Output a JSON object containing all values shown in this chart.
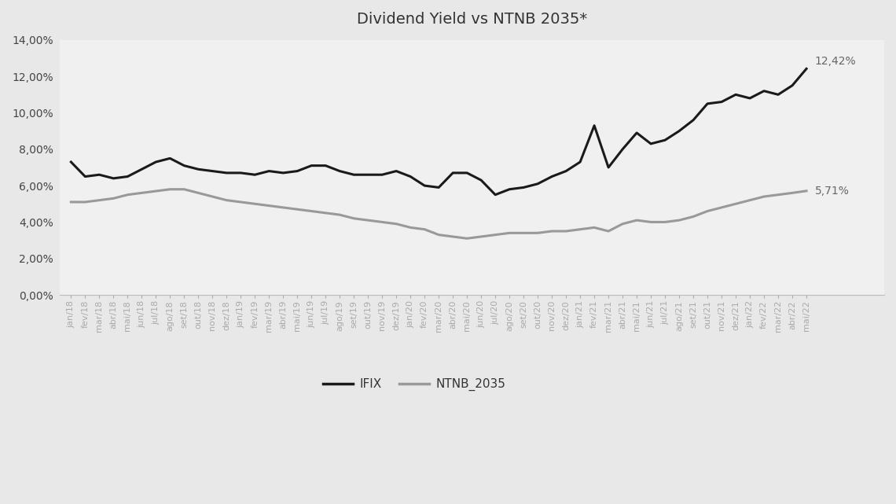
{
  "title": "Dividend Yield vs NTNB 2035*",
  "fig_background_color": "#e8e8e8",
  "plot_background_color": "#f0f0f0",
  "ifix_color": "#1a1a1a",
  "ntnb_color": "#999999",
  "line_width": 2.2,
  "labels": [
    "jan/18",
    "fev/18",
    "mar/18",
    "abr/18",
    "mai/18",
    "jun/18",
    "jul/18",
    "ago/18",
    "set/18",
    "out/18",
    "nov/18",
    "dez/18",
    "jan/19",
    "fev/19",
    "mar/19",
    "abr/19",
    "mai/19",
    "jun/19",
    "jul/19",
    "ago/19",
    "set/19",
    "out/19",
    "nov/19",
    "dez/19",
    "jan/20",
    "fev/20",
    "mar/20",
    "abr/20",
    "mai/20",
    "jun/20",
    "jul/20",
    "ago/20",
    "set/20",
    "out/20",
    "nov/20",
    "dez/20",
    "jan/21",
    "fev/21",
    "mar/21",
    "abr/21",
    "mai/21",
    "jun/21",
    "jul/21",
    "ago/21",
    "set/21",
    "out/21",
    "nov/21",
    "dez/21",
    "jan/22",
    "fev/22",
    "mar/22",
    "abr/22",
    "mai/22"
  ],
  "ifix": [
    7.3,
    6.5,
    6.6,
    6.4,
    6.5,
    6.9,
    7.3,
    7.5,
    7.1,
    6.9,
    6.8,
    6.7,
    6.7,
    6.6,
    6.8,
    6.7,
    6.8,
    7.1,
    7.1,
    6.8,
    6.6,
    6.6,
    6.6,
    6.8,
    6.5,
    6.0,
    5.9,
    6.7,
    6.7,
    6.3,
    5.5,
    5.8,
    5.9,
    6.1,
    6.5,
    6.8,
    7.3,
    9.3,
    7.0,
    8.0,
    8.9,
    8.3,
    8.5,
    9.0,
    9.6,
    10.5,
    10.6,
    11.0,
    10.8,
    11.2,
    11.0,
    11.5,
    12.42
  ],
  "ntnb": [
    5.1,
    5.1,
    5.2,
    5.3,
    5.5,
    5.6,
    5.7,
    5.8,
    5.8,
    5.6,
    5.4,
    5.2,
    5.1,
    5.0,
    4.9,
    4.8,
    4.7,
    4.6,
    4.5,
    4.4,
    4.2,
    4.1,
    4.0,
    3.9,
    3.7,
    3.6,
    3.3,
    3.2,
    3.1,
    3.2,
    3.3,
    3.4,
    3.4,
    3.4,
    3.5,
    3.5,
    3.6,
    3.7,
    3.5,
    3.9,
    4.1,
    4.0,
    4.0,
    4.1,
    4.3,
    4.6,
    4.8,
    5.0,
    5.2,
    5.4,
    5.5,
    5.6,
    5.71
  ],
  "ylim": [
    0.0,
    14.0
  ],
  "yticks": [
    0.0,
    2.0,
    4.0,
    6.0,
    8.0,
    10.0,
    12.0,
    14.0
  ],
  "legend_ifix": "IFIX",
  "legend_ntnb": "NTNB_2035",
  "annotation_ifix": "12,42%",
  "annotation_ntnb": "5,71%",
  "title_fontsize": 14,
  "ytick_fontsize": 10,
  "xtick_fontsize": 8,
  "annotation_fontsize": 10,
  "legend_fontsize": 11
}
